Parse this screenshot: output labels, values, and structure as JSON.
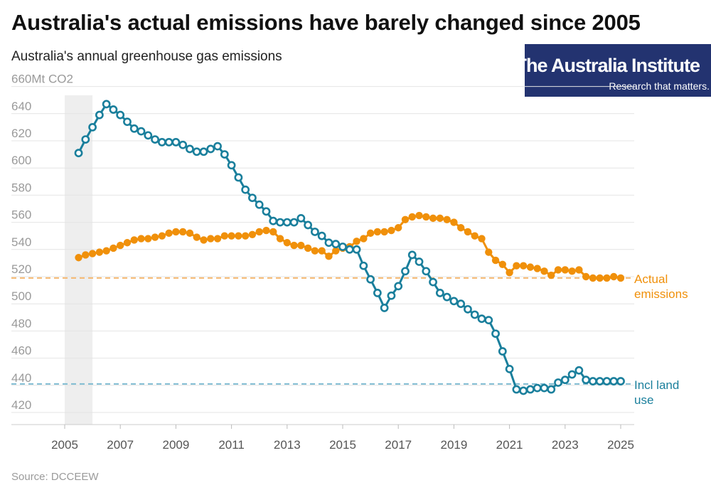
{
  "header": {
    "title": "Australia's actual emissions have barely changed since 2005",
    "subtitle": "Australia's annual greenhouse gas emissions"
  },
  "logo": {
    "name": "The Australia Institute",
    "tagline": "Research that matters."
  },
  "source": "Source: DCCEEW",
  "colors": {
    "actual": "#f0900a",
    "land_use": "#1a7f9c",
    "actual_ref": "#f5b870",
    "land_ref": "#7fbcd2",
    "shade": "#eeeeee",
    "grid": "#e4e4e4"
  },
  "chart_data": {
    "type": "line",
    "title": "Australia's actual emissions have barely changed since 2005",
    "subtitle": "Australia's annual greenhouse gas emissions",
    "ylabel": "Mt CO2",
    "y_top_label": "660Mt CO2",
    "ylim": [
      410,
      660
    ],
    "xlim": [
      2005,
      2025.3
    ],
    "y_ticks": [
      420,
      440,
      460,
      480,
      500,
      520,
      540,
      560,
      580,
      600,
      620,
      640
    ],
    "x_ticks": [
      2005,
      2007,
      2009,
      2011,
      2013,
      2015,
      2017,
      2019,
      2021,
      2023,
      2025
    ],
    "shaded_period": [
      2005,
      2006
    ],
    "reference_lines": [
      {
        "series": "Actual emissions",
        "y": 519
      },
      {
        "series": "Incl land use",
        "y": 441
      }
    ],
    "series": [
      {
        "name": "Actual emissions",
        "label_lines": [
          "Actual",
          "emissions"
        ],
        "marker": "filled",
        "x": [
          2005.5,
          2005.75,
          2006,
          2006.25,
          2006.5,
          2006.75,
          2007,
          2007.25,
          2007.5,
          2007.75,
          2008,
          2008.25,
          2008.5,
          2008.75,
          2009,
          2009.25,
          2009.5,
          2009.75,
          2010,
          2010.25,
          2010.5,
          2010.75,
          2011,
          2011.25,
          2011.5,
          2011.75,
          2012,
          2012.25,
          2012.5,
          2012.75,
          2013,
          2013.25,
          2013.5,
          2013.75,
          2014,
          2014.25,
          2014.5,
          2014.75,
          2015,
          2015.25,
          2015.5,
          2015.75,
          2016,
          2016.25,
          2016.5,
          2016.75,
          2017,
          2017.25,
          2017.5,
          2017.75,
          2018,
          2018.25,
          2018.5,
          2018.75,
          2019,
          2019.25,
          2019.5,
          2019.75,
          2020,
          2020.25,
          2020.5,
          2020.75,
          2021,
          2021.25,
          2021.5,
          2021.75,
          2022,
          2022.25,
          2022.5,
          2022.75,
          2023,
          2023.25,
          2023.5,
          2023.75,
          2024,
          2024.25,
          2024.5,
          2024.75,
          2025
        ],
        "values": [
          534,
          536,
          537,
          538,
          539,
          541,
          543,
          545,
          547,
          548,
          548,
          549,
          550,
          552,
          553,
          553,
          552,
          549,
          547,
          548,
          548,
          550,
          550,
          550,
          550,
          551,
          553,
          554,
          553,
          548,
          545,
          543,
          543,
          541,
          539,
          539,
          535,
          539,
          541,
          542,
          546,
          548,
          552,
          553,
          553,
          554,
          556,
          562,
          564,
          565,
          564,
          563,
          563,
          562,
          560,
          556,
          553,
          550,
          548,
          538,
          532,
          529,
          523,
          528,
          528,
          527,
          526,
          524,
          521,
          525,
          525,
          524,
          525,
          520,
          519,
          519,
          519,
          520,
          519
        ]
      },
      {
        "name": "Incl land use",
        "label_lines": [
          "Incl land",
          "use"
        ],
        "marker": "hollow",
        "x": [
          2005.5,
          2005.75,
          2006,
          2006.25,
          2006.5,
          2006.75,
          2007,
          2007.25,
          2007.5,
          2007.75,
          2008,
          2008.25,
          2008.5,
          2008.75,
          2009,
          2009.25,
          2009.5,
          2009.75,
          2010,
          2010.25,
          2010.5,
          2010.75,
          2011,
          2011.25,
          2011.5,
          2011.75,
          2012,
          2012.25,
          2012.5,
          2012.75,
          2013,
          2013.25,
          2013.5,
          2013.75,
          2014,
          2014.25,
          2014.5,
          2014.75,
          2015,
          2015.25,
          2015.5,
          2015.75,
          2016,
          2016.25,
          2016.5,
          2016.75,
          2017,
          2017.25,
          2017.5,
          2017.75,
          2018,
          2018.25,
          2018.5,
          2018.75,
          2019,
          2019.25,
          2019.5,
          2019.75,
          2020,
          2020.25,
          2020.5,
          2020.75,
          2021,
          2021.25,
          2021.5,
          2021.75,
          2022,
          2022.25,
          2022.5,
          2022.75,
          2023,
          2023.25,
          2023.5,
          2023.75,
          2024,
          2024.25,
          2024.5,
          2024.75,
          2025
        ],
        "values": [
          611,
          621,
          630,
          639,
          647,
          643,
          639,
          634,
          629,
          627,
          624,
          621,
          619,
          619,
          619,
          617,
          614,
          612,
          612,
          614,
          616,
          610,
          602,
          593,
          584,
          578,
          573,
          568,
          561,
          560,
          560,
          560,
          563,
          558,
          553,
          550,
          545,
          544,
          542,
          540,
          540,
          528,
          518,
          508,
          497,
          506,
          513,
          524,
          536,
          531,
          524,
          516,
          508,
          505,
          502,
          500,
          496,
          492,
          489,
          488,
          478,
          465,
          452,
          437,
          436,
          437,
          438,
          438,
          437,
          442,
          444,
          448,
          451,
          444,
          443,
          443,
          443,
          443,
          443
        ]
      }
    ]
  }
}
